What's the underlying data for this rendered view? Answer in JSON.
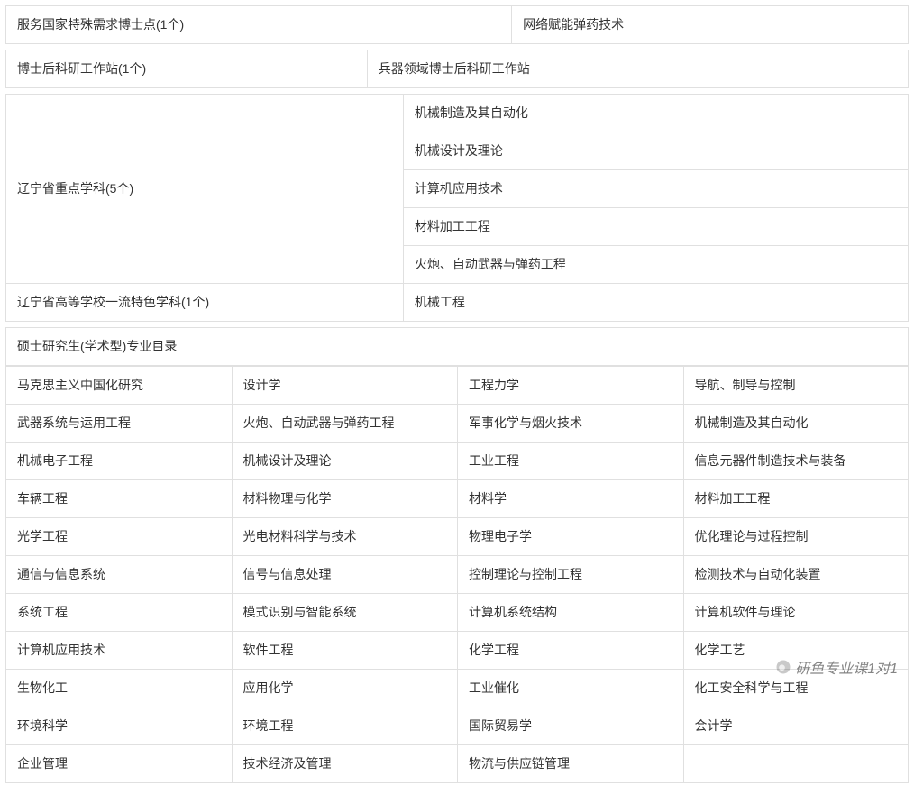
{
  "colors": {
    "text": "#333333",
    "border": "#e0e0e0",
    "background": "#ffffff"
  },
  "typography": {
    "font_family": "Microsoft YaHei",
    "font_size_pt": 10.5,
    "line_height": 1.5
  },
  "table1": {
    "type": "table",
    "col_widths": [
      "56%",
      "44%"
    ],
    "rows": [
      [
        "服务国家特殊需求博士点(1个)",
        "网络赋能弹药技术"
      ]
    ]
  },
  "table2": {
    "type": "table",
    "col_widths": [
      "40%",
      "60%"
    ],
    "rows": [
      [
        "博士后科研工作站(1个)",
        "兵器领域博士后科研工作站"
      ]
    ]
  },
  "table3": {
    "type": "table",
    "col_widths": [
      "44%",
      "56%"
    ],
    "label1": "辽宁省重点学科(5个)",
    "items1": [
      "机械制造及其自动化",
      "机械设计及理论",
      "计算机应用技术",
      "材料加工工程",
      "火炮、自动武器与弹药工程"
    ],
    "label2": "辽宁省高等学校一流特色学科(1个)",
    "value2": "机械工程"
  },
  "table4": {
    "type": "table",
    "header_colspan": 4,
    "col_widths": [
      "25%",
      "25%",
      "25%",
      "25%"
    ],
    "header": "硕士研究生(学术型)专业目录",
    "rows": [
      [
        "马克思主义中国化研究",
        "设计学",
        "工程力学",
        "导航、制导与控制"
      ],
      [
        "武器系统与运用工程",
        "火炮、自动武器与弹药工程",
        "军事化学与烟火技术",
        "机械制造及其自动化"
      ],
      [
        "机械电子工程",
        "机械设计及理论",
        "工业工程",
        "信息元器件制造技术与装备"
      ],
      [
        "车辆工程",
        "材料物理与化学",
        "材料学",
        "材料加工工程"
      ],
      [
        "光学工程",
        "光电材料科学与技术",
        "物理电子学",
        "优化理论与过程控制"
      ],
      [
        "通信与信息系统",
        "信号与信息处理",
        "控制理论与控制工程",
        "检测技术与自动化装置"
      ],
      [
        "系统工程",
        "模式识别与智能系统",
        "计算机系统结构",
        "计算机软件与理论"
      ],
      [
        "计算机应用技术",
        "软件工程",
        "化学工程",
        "化学工艺"
      ],
      [
        "生物化工",
        "应用化学",
        "工业催化",
        "化工安全科学与工程"
      ],
      [
        "环境科学",
        "环境工程",
        "国际贸易学",
        "会计学"
      ],
      [
        "企业管理",
        "技术经济及管理",
        "物流与供应链管理",
        ""
      ]
    ]
  },
  "watermark": {
    "text": "研鱼专业课1对1"
  }
}
